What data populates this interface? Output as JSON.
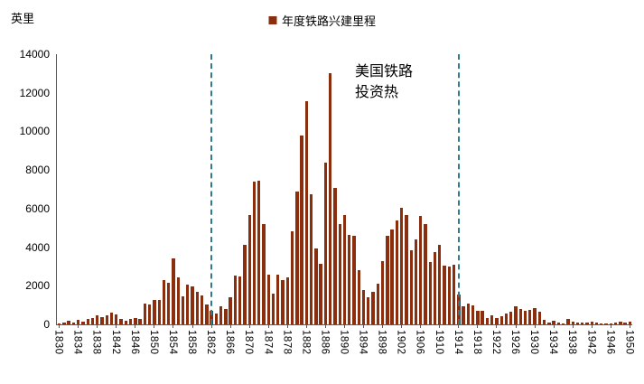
{
  "chart_data": {
    "type": "bar",
    "legend": "年度铁路兴建里程",
    "ylabel": "英里",
    "ylim": [
      0,
      14000
    ],
    "ytick_step": 2000,
    "x_label_interval": 4,
    "bar_color": "#8B2E0E",
    "dash_color": "#2E7D8C",
    "dash_years": [
      1862,
      1914
    ],
    "annotation": {
      "lines": [
        "美国铁路",
        "投资热"
      ]
    },
    "x": [
      1830,
      1831,
      1832,
      1833,
      1834,
      1835,
      1836,
      1837,
      1838,
      1839,
      1840,
      1841,
      1842,
      1843,
      1844,
      1845,
      1846,
      1847,
      1848,
      1849,
      1850,
      1851,
      1852,
      1853,
      1854,
      1855,
      1856,
      1857,
      1858,
      1859,
      1860,
      1861,
      1862,
      1863,
      1864,
      1865,
      1866,
      1867,
      1868,
      1869,
      1870,
      1871,
      1872,
      1873,
      1874,
      1875,
      1876,
      1877,
      1878,
      1879,
      1880,
      1881,
      1882,
      1883,
      1884,
      1885,
      1886,
      1887,
      1888,
      1889,
      1890,
      1891,
      1892,
      1893,
      1894,
      1895,
      1896,
      1897,
      1898,
      1899,
      1900,
      1901,
      1902,
      1903,
      1904,
      1905,
      1906,
      1907,
      1908,
      1909,
      1910,
      1911,
      1912,
      1913,
      1914,
      1915,
      1916,
      1917,
      1918,
      1919,
      1920,
      1921,
      1922,
      1923,
      1924,
      1925,
      1926,
      1927,
      1928,
      1929,
      1930,
      1931,
      1932,
      1933,
      1934,
      1935,
      1936,
      1937,
      1938,
      1939,
      1940,
      1941,
      1942,
      1943,
      1944,
      1945,
      1946,
      1947,
      1948,
      1949,
      1950
    ],
    "values": [
      40,
      100,
      190,
      115,
      215,
      140,
      280,
      350,
      450,
      390,
      490,
      605,
      505,
      290,
      180,
      280,
      335,
      265,
      1055,
      1050,
      1260,
      1275,
      2290,
      2170,
      3440,
      2455,
      1470,
      2075,
      1965,
      1705,
      1500,
      1015,
      720,
      575,
      945,
      820,
      1405,
      2540,
      2470,
      4105,
      5660,
      7380,
      7440,
      5215,
      2585,
      1605,
      2575,
      2280,
      2430,
      4810,
      6875,
      9790,
      11570,
      6745,
      3925,
      3130,
      8400,
      13040,
      7065,
      5195,
      5655,
      4620,
      4585,
      2790,
      1760,
      1420,
      1690,
      2110,
      3265,
      4570,
      4895,
      5370,
      6025,
      5650,
      3830,
      4390,
      5625,
      5210,
      3215,
      3750,
      4120,
      3065,
      3000,
      3070,
      1530,
      935,
      1100,
      980,
      720,
      685,
      315,
      475,
      325,
      425,
      580,
      645,
      925,
      780,
      680,
      730,
      860,
      640,
      240,
      85,
      180,
      90,
      70,
      285,
      150,
      110,
      90,
      100,
      120,
      80,
      60,
      50,
      65,
      100,
      130,
      110,
      120
    ]
  }
}
